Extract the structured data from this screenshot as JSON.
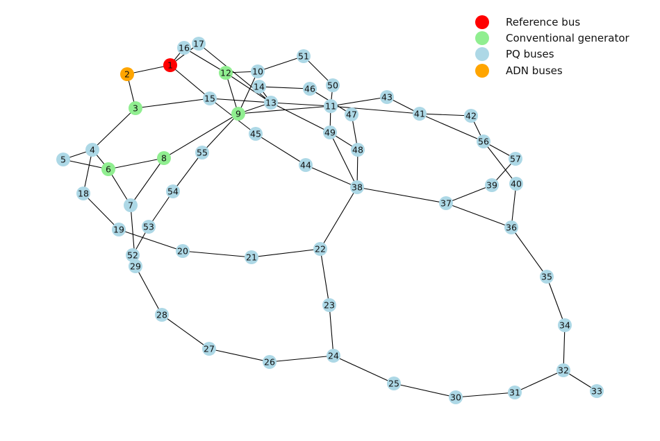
{
  "legend": [
    {
      "label": "Reference bus",
      "type": "reference",
      "color": "#ff0000"
    },
    {
      "label": "Conventional generator",
      "type": "generator",
      "color": "#90ee90"
    },
    {
      "label": "PQ buses",
      "type": "pq",
      "color": "#add8e6"
    },
    {
      "label": "ADN buses",
      "type": "adn",
      "color": "#ffa500"
    }
  ],
  "node_types": {
    "reference": [
      "1"
    ],
    "generator": [
      "3",
      "6",
      "8",
      "9",
      "12"
    ],
    "adn": [
      "2"
    ]
  },
  "nodes": [
    "1",
    "2",
    "3",
    "4",
    "5",
    "6",
    "7",
    "8",
    "9",
    "10",
    "11",
    "12",
    "13",
    "14",
    "15",
    "16",
    "17",
    "18",
    "19",
    "20",
    "21",
    "22",
    "23",
    "24",
    "25",
    "26",
    "27",
    "28",
    "29",
    "30",
    "31",
    "32",
    "33",
    "34",
    "35",
    "36",
    "37",
    "38",
    "39",
    "40",
    "41",
    "42",
    "43",
    "44",
    "45",
    "46",
    "47",
    "48",
    "49",
    "50",
    "51",
    "52",
    "53",
    "54",
    "55",
    "56",
    "57"
  ],
  "edges": [
    [
      "1",
      "2"
    ],
    [
      "1",
      "15"
    ],
    [
      "1",
      "16"
    ],
    [
      "1",
      "17"
    ],
    [
      "2",
      "3"
    ],
    [
      "3",
      "4"
    ],
    [
      "3",
      "15"
    ],
    [
      "4",
      "5"
    ],
    [
      "4",
      "6"
    ],
    [
      "4",
      "18"
    ],
    [
      "5",
      "6"
    ],
    [
      "6",
      "7"
    ],
    [
      "6",
      "8"
    ],
    [
      "8",
      "7"
    ],
    [
      "8",
      "9"
    ],
    [
      "7",
      "29"
    ],
    [
      "9",
      "10"
    ],
    [
      "9",
      "11"
    ],
    [
      "9",
      "12"
    ],
    [
      "9",
      "13"
    ],
    [
      "9",
      "55"
    ],
    [
      "10",
      "12"
    ],
    [
      "10",
      "51"
    ],
    [
      "51",
      "50"
    ],
    [
      "50",
      "11"
    ],
    [
      "12",
      "13"
    ],
    [
      "12",
      "16"
    ],
    [
      "17",
      "13"
    ],
    [
      "13",
      "14"
    ],
    [
      "13",
      "15"
    ],
    [
      "13",
      "49"
    ],
    [
      "14",
      "46"
    ],
    [
      "46",
      "47"
    ],
    [
      "11",
      "13"
    ],
    [
      "11",
      "41"
    ],
    [
      "11",
      "43"
    ],
    [
      "11",
      "49"
    ],
    [
      "47",
      "48"
    ],
    [
      "15",
      "45"
    ],
    [
      "45",
      "44"
    ],
    [
      "44",
      "38"
    ],
    [
      "48",
      "38"
    ],
    [
      "49",
      "38"
    ],
    [
      "49",
      "48"
    ],
    [
      "41",
      "42"
    ],
    [
      "41",
      "43"
    ],
    [
      "41",
      "56"
    ],
    [
      "42",
      "56"
    ],
    [
      "56",
      "57"
    ],
    [
      "56",
      "40"
    ],
    [
      "57",
      "39"
    ],
    [
      "39",
      "37"
    ],
    [
      "38",
      "37"
    ],
    [
      "40",
      "36"
    ],
    [
      "37",
      "36"
    ],
    [
      "36",
      "35"
    ],
    [
      "35",
      "34"
    ],
    [
      "34",
      "32"
    ],
    [
      "32",
      "33"
    ],
    [
      "32",
      "31"
    ],
    [
      "31",
      "30"
    ],
    [
      "30",
      "25"
    ],
    [
      "25",
      "24"
    ],
    [
      "38",
      "22"
    ],
    [
      "22",
      "21"
    ],
    [
      "21",
      "20"
    ],
    [
      "20",
      "19"
    ],
    [
      "19",
      "18"
    ],
    [
      "22",
      "23"
    ],
    [
      "23",
      "24"
    ],
    [
      "24",
      "26"
    ],
    [
      "26",
      "27"
    ],
    [
      "27",
      "28"
    ],
    [
      "28",
      "29"
    ],
    [
      "29",
      "52"
    ],
    [
      "52",
      "53"
    ],
    [
      "53",
      "54"
    ],
    [
      "54",
      "55"
    ]
  ]
}
